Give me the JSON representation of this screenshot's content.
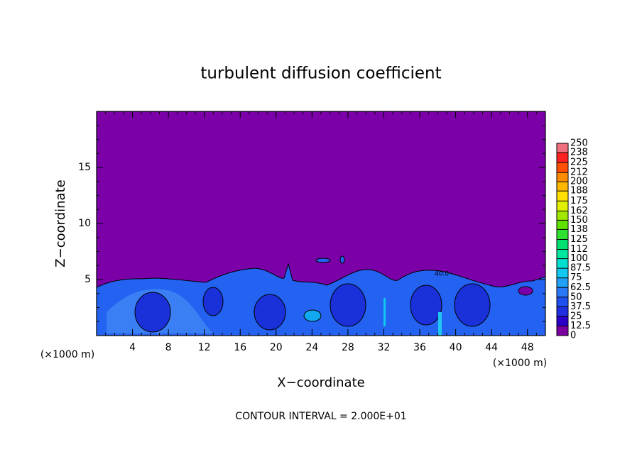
{
  "chart_data": {
    "type": "contour",
    "title": "turbulent diffusion coefficient",
    "x_label": "X−coordinate",
    "y_label": "Z−coordinate",
    "x_unit": "(×1000 m)",
    "x_unit_right": "(×1000 m)",
    "footnote": "CONTOUR INTERVAL = 2.000E+01",
    "contour_labels": [
      "40.0"
    ],
    "xlim": [
      0,
      50
    ],
    "ylim": [
      0,
      20
    ],
    "xticks": [
      4,
      8,
      12,
      16,
      20,
      24,
      28,
      32,
      36,
      40,
      44,
      48
    ],
    "yticks": [
      5,
      10,
      15
    ],
    "colorbar": {
      "levels": [
        0,
        12.5,
        25,
        37.5,
        50,
        62.5,
        75,
        87.5,
        100,
        112,
        125,
        138,
        150,
        162,
        175,
        188,
        200,
        212,
        225,
        238,
        250
      ],
      "colors": [
        "#7a00a0",
        "#2a00c8",
        "#1e2ee0",
        "#1e50f0",
        "#2878f8",
        "#20a0f8",
        "#10c8f0",
        "#00e0d0",
        "#00e8a0",
        "#00e070",
        "#30e030",
        "#60e000",
        "#a0e800",
        "#e0f000",
        "#ffe000",
        "#ffb800",
        "#ff8c00",
        "#ff5000",
        "#ff2020",
        "#f07080"
      ]
    }
  }
}
